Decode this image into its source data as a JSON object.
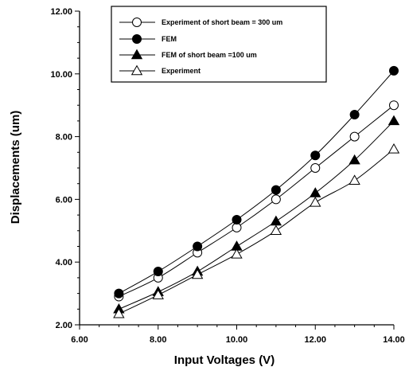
{
  "chart_data": {
    "type": "line",
    "title": "",
    "xlabel": "Input Voltages (V)",
    "ylabel": "Displacements (um)",
    "xlim": [
      6,
      14
    ],
    "ylim": [
      2,
      12
    ],
    "x_ticks": [
      "6.00",
      "8.00",
      "10.00",
      "12.00",
      "14.00"
    ],
    "y_ticks": [
      "2.00",
      "4.00",
      "6.00",
      "8.00",
      "10.00",
      "12.00"
    ],
    "grid": false,
    "legend_position": "top-center",
    "x": [
      7,
      8,
      9,
      10,
      11,
      12,
      13,
      14
    ],
    "series": [
      {
        "name": "Experiment of short beam = 300 um",
        "marker": "open-circle",
        "values": [
          2.9,
          3.5,
          4.3,
          5.1,
          6.0,
          7.0,
          8.0,
          9.0
        ]
      },
      {
        "name": "FEM",
        "marker": "filled-circle",
        "values": [
          3.0,
          3.7,
          4.5,
          5.35,
          6.3,
          7.4,
          8.7,
          10.1
        ]
      },
      {
        "name": "FEM of short beam =100 um",
        "marker": "filled-triangle",
        "values": [
          2.5,
          3.05,
          3.7,
          4.5,
          5.3,
          6.2,
          7.25,
          8.5
        ]
      },
      {
        "name": "Experiment",
        "marker": "open-triangle",
        "values": [
          2.35,
          2.95,
          3.6,
          4.25,
          5.0,
          5.9,
          6.6,
          7.6
        ]
      }
    ]
  }
}
